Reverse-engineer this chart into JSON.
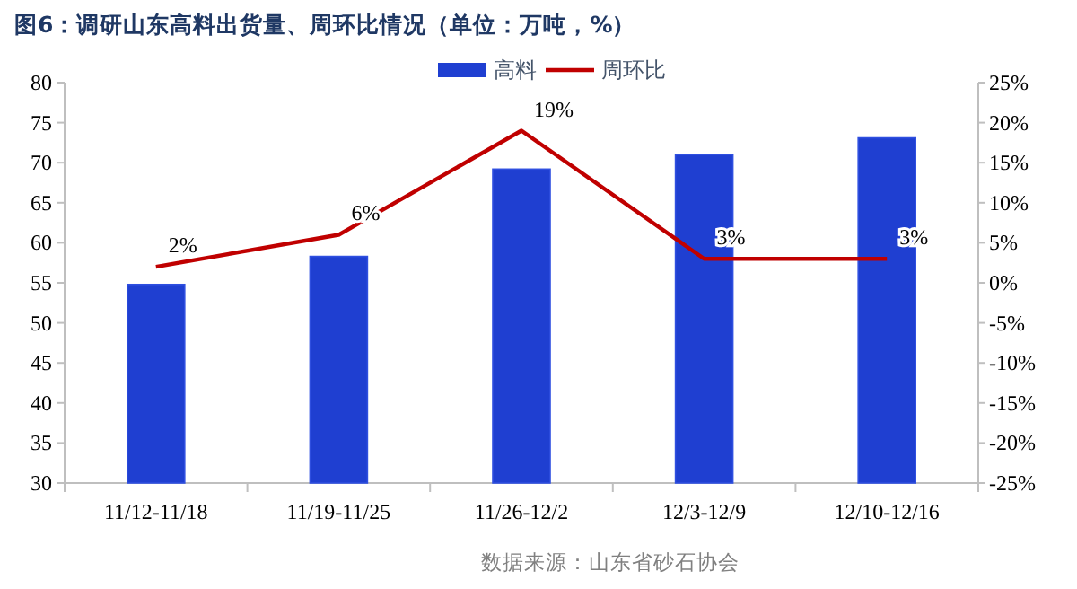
{
  "chart_data": {
    "type": "bar",
    "title": "图6：调研山东高料出货量、周环比情况（单位：万吨，%）",
    "annotations": [
      "数据来源：山东省砂石协会"
    ],
    "categories": [
      "11/12-11/18",
      "11/19-11/25",
      "11/26-12/2",
      "12/3-12/9",
      "12/10-12/16"
    ],
    "series": [
      {
        "name": "高料",
        "color": "#1f3fd1",
        "values": [
          54.8,
          58.3,
          69.2,
          71.0,
          73.1
        ]
      },
      {
        "name": "周环比",
        "type": "line",
        "axis": "y2",
        "color": "#c00000",
        "values": [
          2,
          6,
          19,
          3,
          3
        ],
        "value_labels": [
          "2%",
          "6%",
          "19%",
          "3%",
          "3%"
        ]
      }
    ],
    "ylim": [
      30,
      80
    ],
    "yticks": [
      30,
      35,
      40,
      45,
      50,
      55,
      60,
      65,
      70,
      75,
      80
    ],
    "y2lim": [
      -25,
      25
    ],
    "y2ticks": [
      {
        "value": -25,
        "label": "-25%"
      },
      {
        "value": -20,
        "label": "-20%"
      },
      {
        "value": -15,
        "label": "-15%"
      },
      {
        "value": -10,
        "label": "-10%"
      },
      {
        "value": -5,
        "label": "-5%"
      },
      {
        "value": 0,
        "label": "0%"
      },
      {
        "value": 5,
        "label": "5%"
      },
      {
        "value": 10,
        "label": "10%"
      },
      {
        "value": 15,
        "label": "15%"
      },
      {
        "value": 20,
        "label": "20%"
      },
      {
        "value": 25,
        "label": "25%"
      }
    ],
    "grid": false,
    "legend": "top"
  }
}
